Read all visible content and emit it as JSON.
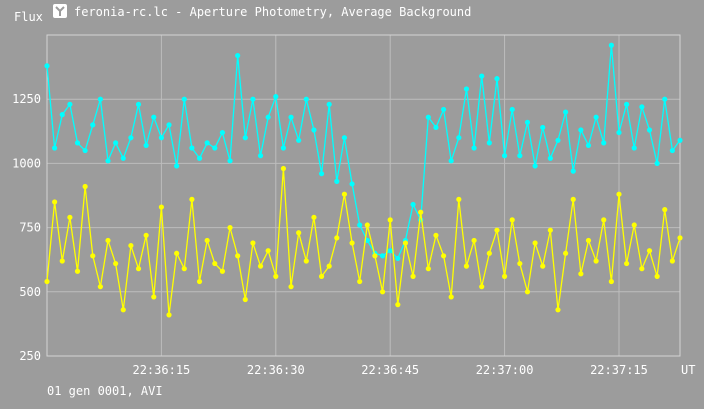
{
  "window": {
    "title": "feronia-rc.lc - Aperture Photometry, Average Background",
    "icon": "program-icon"
  },
  "footer": {
    "status": "01 gen 0001, AVI"
  },
  "chart_data": {
    "type": "line",
    "ylabel": "Flux",
    "xlabel": "UT",
    "ylim": [
      250,
      1500
    ],
    "xlim": [
      "22:36:00",
      "22:37:23"
    ],
    "y_ticks": [
      "250",
      "500",
      "750",
      "1000",
      "1250"
    ],
    "x_ticks": [
      "22:36:15",
      "22:36:30",
      "22:36:45",
      "22:37:00",
      "22:37:15"
    ],
    "grid": true,
    "series": [
      {
        "color": "#00ffff",
        "x": [
          "22:36:00",
          "22:36:01",
          "22:36:02",
          "22:36:03",
          "22:36:04",
          "22:36:05",
          "22:36:06",
          "22:36:07",
          "22:36:08",
          "22:36:09",
          "22:36:10",
          "22:36:11",
          "22:36:12",
          "22:36:13",
          "22:36:14",
          "22:36:15",
          "22:36:16",
          "22:36:17",
          "22:36:18",
          "22:36:19",
          "22:36:20",
          "22:36:21",
          "22:36:22",
          "22:36:23",
          "22:36:24",
          "22:36:25",
          "22:36:26",
          "22:36:27",
          "22:36:28",
          "22:36:29",
          "22:36:30",
          "22:36:31",
          "22:36:32",
          "22:36:33",
          "22:36:34",
          "22:36:35",
          "22:36:36",
          "22:36:37",
          "22:36:38",
          "22:36:39",
          "22:36:40",
          "22:36:41",
          "22:36:42",
          "22:36:43",
          "22:36:44",
          "22:36:45",
          "22:36:46",
          "22:36:47",
          "22:36:48",
          "22:36:49",
          "22:36:50",
          "22:36:51",
          "22:36:52",
          "22:36:53",
          "22:36:54",
          "22:36:55",
          "22:36:56",
          "22:36:57",
          "22:36:58",
          "22:36:59",
          "22:37:00",
          "22:37:01",
          "22:37:02",
          "22:37:03",
          "22:37:04",
          "22:37:05",
          "22:37:06",
          "22:37:07",
          "22:37:08",
          "22:37:09",
          "22:37:10",
          "22:37:11",
          "22:37:12",
          "22:37:13",
          "22:37:14",
          "22:37:15",
          "22:37:16",
          "22:37:17",
          "22:37:18",
          "22:37:19",
          "22:37:20",
          "22:37:21",
          "22:37:22",
          "22:37:23"
        ],
        "values": [
          1380,
          1060,
          1190,
          1230,
          1080,
          1050,
          1150,
          1250,
          1010,
          1080,
          1020,
          1100,
          1230,
          1070,
          1180,
          1100,
          1150,
          990,
          1250,
          1060,
          1020,
          1080,
          1060,
          1120,
          1010,
          1420,
          1100,
          1250,
          1030,
          1180,
          1260,
          1060,
          1180,
          1090,
          1250,
          1130,
          960,
          1230,
          930,
          1100,
          920,
          760,
          700,
          650,
          640,
          660,
          630,
          700,
          840,
          780,
          1180,
          1140,
          1210,
          1010,
          1100,
          1290,
          1060,
          1340,
          1080,
          1330,
          1030,
          1210,
          1030,
          1160,
          990,
          1140,
          1020,
          1090,
          1200,
          970,
          1130,
          1070,
          1180,
          1080,
          1460,
          1120,
          1230,
          1060,
          1220,
          1130,
          1000,
          1250,
          1050,
          1090
        ]
      },
      {
        "color": "#ffff00",
        "x": [
          "22:36:00",
          "22:36:01",
          "22:36:02",
          "22:36:03",
          "22:36:04",
          "22:36:05",
          "22:36:06",
          "22:36:07",
          "22:36:08",
          "22:36:09",
          "22:36:10",
          "22:36:11",
          "22:36:12",
          "22:36:13",
          "22:36:14",
          "22:36:15",
          "22:36:16",
          "22:36:17",
          "22:36:18",
          "22:36:19",
          "22:36:20",
          "22:36:21",
          "22:36:22",
          "22:36:23",
          "22:36:24",
          "22:36:25",
          "22:36:26",
          "22:36:27",
          "22:36:28",
          "22:36:29",
          "22:36:30",
          "22:36:31",
          "22:36:32",
          "22:36:33",
          "22:36:34",
          "22:36:35",
          "22:36:36",
          "22:36:37",
          "22:36:38",
          "22:36:39",
          "22:36:40",
          "22:36:41",
          "22:36:42",
          "22:36:43",
          "22:36:44",
          "22:36:45",
          "22:36:46",
          "22:36:47",
          "22:36:48",
          "22:36:49",
          "22:36:50",
          "22:36:51",
          "22:36:52",
          "22:36:53",
          "22:36:54",
          "22:36:55",
          "22:36:56",
          "22:36:57",
          "22:36:58",
          "22:36:59",
          "22:37:00",
          "22:37:01",
          "22:37:02",
          "22:37:03",
          "22:37:04",
          "22:37:05",
          "22:37:06",
          "22:37:07",
          "22:37:08",
          "22:37:09",
          "22:37:10",
          "22:37:11",
          "22:37:12",
          "22:37:13",
          "22:37:14",
          "22:37:15",
          "22:37:16",
          "22:37:17",
          "22:37:18",
          "22:37:19",
          "22:37:20",
          "22:37:21",
          "22:37:22",
          "22:37:23"
        ],
        "values": [
          540,
          850,
          620,
          790,
          580,
          910,
          640,
          520,
          700,
          610,
          430,
          680,
          590,
          720,
          480,
          830,
          410,
          650,
          590,
          860,
          540,
          700,
          610,
          580,
          750,
          640,
          470,
          690,
          600,
          660,
          560,
          980,
          520,
          730,
          620,
          790,
          560,
          600,
          710,
          880,
          690,
          540,
          760,
          640,
          500,
          780,
          450,
          690,
          560,
          810,
          590,
          720,
          640,
          480,
          860,
          600,
          700,
          520,
          650,
          740,
          560,
          780,
          610,
          500,
          690,
          600,
          740,
          430,
          650,
          860,
          570,
          700,
          620,
          780,
          540,
          880,
          610,
          760,
          590,
          660,
          560,
          820,
          620,
          710
        ]
      }
    ]
  }
}
